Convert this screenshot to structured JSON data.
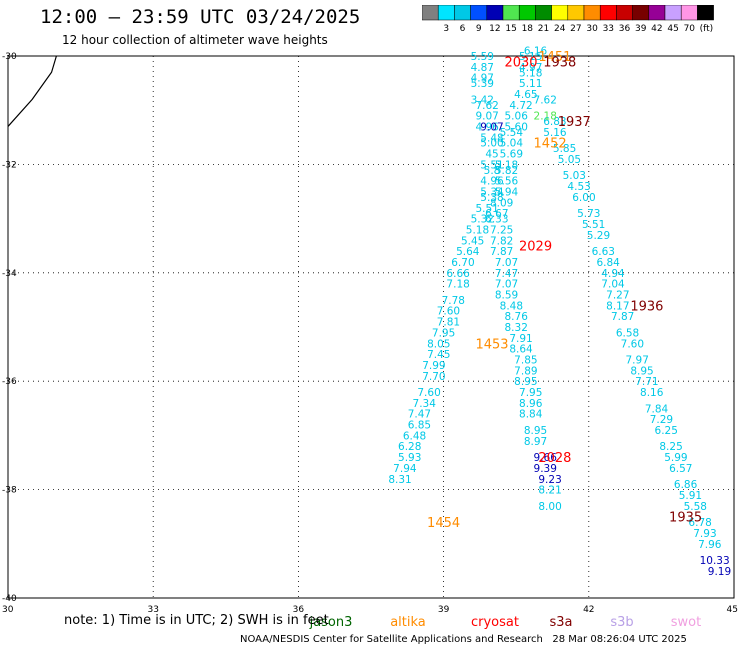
{
  "header": {
    "title": "12:00 — 23:59 UTC 03/24/2025",
    "subtitle": "12 hour collection of altimeter wave heights"
  },
  "colorbar": {
    "unit": "(ft)",
    "entries": [
      {
        "label": "",
        "color": "#808080"
      },
      {
        "label": "3",
        "color": "#00e5ff"
      },
      {
        "label": "6",
        "color": "#00c8e6"
      },
      {
        "label": "9",
        "color": "#0050ff"
      },
      {
        "label": "12",
        "color": "#0000b4"
      },
      {
        "label": "15",
        "color": "#50e650"
      },
      {
        "label": "18",
        "color": "#00c800"
      },
      {
        "label": "21",
        "color": "#008c00"
      },
      {
        "label": "24",
        "color": "#ffff00"
      },
      {
        "label": "27",
        "color": "#ffc800"
      },
      {
        "label": "30",
        "color": "#ff8c00"
      },
      {
        "label": "33",
        "color": "#ff0000"
      },
      {
        "label": "36",
        "color": "#c80000"
      },
      {
        "label": "39",
        "color": "#780000"
      },
      {
        "label": "42",
        "color": "#960096"
      },
      {
        "label": "45",
        "color": "#c8a0ff"
      },
      {
        "label": "70",
        "color": "#ff96e6"
      },
      {
        "label": "",
        "color": "#000000"
      }
    ]
  },
  "note": "note: 1) Time is in UTC; 2) SWH is in feet",
  "satellites": [
    {
      "name": "jason3",
      "color": "#006400"
    },
    {
      "name": "altika",
      "color": "#ff8c00"
    },
    {
      "name": "cryosat",
      "color": "#ff0000"
    },
    {
      "name": "s3a",
      "color": "#800000"
    },
    {
      "name": "s3b",
      "color": "#b8a0e6"
    },
    {
      "name": "swot",
      "color": "#f0a0e0"
    }
  ],
  "credit": "NOAA/NESDIS Center for Satellite Applications and Research   28 Mar 08:26:04 UTC 2025",
  "chart_data": {
    "type": "scatter",
    "xlim": [
      30,
      45
    ],
    "ylim": [
      -40,
      -30
    ],
    "x_ticks": [
      "30",
      "33",
      "36",
      "39",
      "42",
      "45"
    ],
    "y_ticks": [
      "-30",
      "-32",
      "-34",
      "-36",
      "-38",
      "-40"
    ],
    "grid": true,
    "coastline": [
      [
        30.0,
        -31.3
      ],
      [
        30.5,
        -30.8
      ],
      [
        30.9,
        -30.3
      ],
      [
        31.0,
        -30.0
      ]
    ],
    "tracks": [
      {
        "color": "#00c8e6",
        "points": [
          [
            39.8,
            -30.0,
            "5.59"
          ],
          [
            39.8,
            -30.2,
            "4.87"
          ],
          [
            39.8,
            -30.4,
            "4.97"
          ],
          [
            39.8,
            -30.5,
            "5.39"
          ],
          [
            39.8,
            -30.8,
            "3.42"
          ],
          [
            39.9,
            -30.9,
            "7.62"
          ],
          [
            39.9,
            -31.1,
            "9.07"
          ],
          [
            39.9,
            -31.3,
            "4.96"
          ],
          [
            40.0,
            -31.5,
            "5.48"
          ],
          [
            40.0,
            -31.6,
            "5.00"
          ],
          [
            40.0,
            -31.8,
            "45"
          ],
          [
            40.0,
            -32.0,
            "5.51"
          ],
          [
            40.0,
            -32.1,
            "5.8"
          ],
          [
            40.0,
            -32.3,
            "4.96"
          ],
          [
            40.0,
            -32.5,
            "5.34"
          ],
          [
            40.0,
            -32.6,
            "5.38"
          ],
          [
            39.9,
            -32.8,
            "5.51"
          ],
          [
            39.8,
            -33.0,
            "5.32"
          ],
          [
            39.7,
            -33.2,
            "5.18"
          ],
          [
            39.6,
            -33.4,
            "5.45"
          ],
          [
            39.5,
            -33.6,
            "5.64"
          ],
          [
            39.4,
            -33.8,
            "6.70"
          ],
          [
            39.3,
            -34.0,
            "6.66"
          ],
          [
            39.3,
            -34.2,
            "7.18"
          ],
          [
            39.2,
            -34.5,
            "7.78"
          ],
          [
            39.1,
            -34.7,
            "7.60"
          ],
          [
            39.1,
            -34.9,
            "7.81"
          ],
          [
            39.0,
            -35.1,
            "7.95"
          ],
          [
            38.9,
            -35.3,
            "8.05"
          ],
          [
            38.9,
            -35.5,
            "7.45"
          ],
          [
            38.8,
            -35.7,
            "7.99"
          ],
          [
            38.8,
            -35.9,
            "7.70"
          ],
          [
            38.7,
            -36.2,
            "7.60"
          ],
          [
            38.6,
            -36.4,
            "7.34"
          ],
          [
            38.5,
            -36.6,
            "7.47"
          ],
          [
            38.5,
            -36.8,
            "6.85"
          ],
          [
            38.4,
            -37.0,
            "6.48"
          ],
          [
            38.3,
            -37.2,
            "6.28"
          ],
          [
            38.3,
            -37.4,
            "5.93"
          ],
          [
            38.2,
            -37.6,
            "7.94"
          ],
          [
            38.1,
            -37.8,
            "8.31"
          ]
        ]
      },
      {
        "color": "#00c8e6",
        "points": [
          [
            40.9,
            -29.9,
            "6.16"
          ],
          [
            40.8,
            -30.0,
            "5.15"
          ],
          [
            40.8,
            -30.2,
            "4.97"
          ],
          [
            40.8,
            -30.3,
            "5.18"
          ],
          [
            40.8,
            -30.5,
            "5.11"
          ],
          [
            40.7,
            -30.7,
            "4.65"
          ],
          [
            40.6,
            -30.9,
            "4.72"
          ],
          [
            40.5,
            -31.1,
            "5.06"
          ],
          [
            40.5,
            -31.3,
            "5.60"
          ],
          [
            40.4,
            -31.4,
            "5.54"
          ],
          [
            40.4,
            -31.6,
            "5.04"
          ],
          [
            40.4,
            -31.8,
            "5.69"
          ],
          [
            40.3,
            -32.0,
            "5.18"
          ],
          [
            40.3,
            -32.1,
            "5.82"
          ],
          [
            40.3,
            -32.3,
            "5.56"
          ],
          [
            40.3,
            -32.5,
            "5.94"
          ],
          [
            40.2,
            -32.7,
            "8.09"
          ],
          [
            40.1,
            -32.9,
            "6.67"
          ],
          [
            40.1,
            -33.0,
            "6.33"
          ],
          [
            40.2,
            -33.2,
            "7.25"
          ],
          [
            40.2,
            -33.4,
            "7.82"
          ],
          [
            40.2,
            -33.6,
            "7.87"
          ],
          [
            40.3,
            -33.8,
            "7.07"
          ],
          [
            40.3,
            -34.0,
            "7.47"
          ],
          [
            40.3,
            -34.2,
            "7.07"
          ],
          [
            40.3,
            -34.4,
            "8.59"
          ],
          [
            40.4,
            -34.6,
            "8.48"
          ],
          [
            40.5,
            -34.8,
            "8.76"
          ],
          [
            40.5,
            -35.0,
            "8.32"
          ],
          [
            40.6,
            -35.2,
            "7.91"
          ],
          [
            40.6,
            -35.4,
            "8.64"
          ],
          [
            40.7,
            -35.6,
            "7.85"
          ],
          [
            40.7,
            -35.8,
            "7.89"
          ],
          [
            40.7,
            -36.0,
            "8.95"
          ],
          [
            40.8,
            -36.2,
            "7.95"
          ],
          [
            40.8,
            -36.4,
            "8.96"
          ],
          [
            40.8,
            -36.6,
            "8.84"
          ],
          [
            40.9,
            -36.9,
            "8.95"
          ],
          [
            40.9,
            -37.1,
            "8.97"
          ]
        ]
      },
      {
        "color": "#0000b4",
        "points": [
          [
            40.0,
            -31.3,
            "9.07"
          ],
          [
            41.1,
            -37.4,
            "9.66"
          ],
          [
            41.1,
            -37.6,
            "9.39"
          ],
          [
            41.2,
            -37.8,
            "9.23"
          ]
        ]
      },
      {
        "color": "#00c8e6",
        "points": [
          [
            41.1,
            -30.8,
            "7.62"
          ],
          [
            41.3,
            -31.2,
            "6.83"
          ],
          [
            41.3,
            -31.4,
            "5.16"
          ],
          [
            41.5,
            -31.7,
            "5.85"
          ],
          [
            41.6,
            -31.9,
            "5.05"
          ],
          [
            41.7,
            -32.2,
            "5.03"
          ],
          [
            41.8,
            -32.4,
            "4.53"
          ],
          [
            41.9,
            -32.6,
            "6.00"
          ],
          [
            42.0,
            -32.9,
            "5.73"
          ],
          [
            42.1,
            -33.1,
            "5.51"
          ],
          [
            42.2,
            -33.3,
            "5.29"
          ],
          [
            42.3,
            -33.6,
            "6.63"
          ],
          [
            42.4,
            -33.8,
            "6.84"
          ],
          [
            42.5,
            -34.0,
            "4.94"
          ],
          [
            42.5,
            -34.2,
            "7.04"
          ],
          [
            42.6,
            -34.4,
            "7.27"
          ],
          [
            42.6,
            -34.6,
            "8.17"
          ],
          [
            42.7,
            -34.8,
            "7.87"
          ],
          [
            42.8,
            -35.1,
            "6.58"
          ],
          [
            42.9,
            -35.3,
            "7.60"
          ],
          [
            43.0,
            -35.6,
            "7.97"
          ],
          [
            43.1,
            -35.8,
            "8.95"
          ],
          [
            43.2,
            -36.0,
            "7.71"
          ],
          [
            43.3,
            -36.2,
            "8.16"
          ],
          [
            43.4,
            -36.5,
            "7.84"
          ],
          [
            43.5,
            -36.7,
            "7.29"
          ],
          [
            43.6,
            -36.9,
            "6.25"
          ],
          [
            43.7,
            -37.2,
            "8.25"
          ],
          [
            43.8,
            -37.4,
            "5.99"
          ],
          [
            43.9,
            -37.6,
            "6.57"
          ],
          [
            44.0,
            -37.9,
            "6.86"
          ],
          [
            44.1,
            -38.1,
            "5.91"
          ],
          [
            44.2,
            -38.3,
            "5.58"
          ],
          [
            44.3,
            -38.6,
            "6.78"
          ],
          [
            44.4,
            -38.8,
            "7.93"
          ],
          [
            44.5,
            -39.0,
            "7.96"
          ]
        ]
      },
      {
        "color": "#0000b4",
        "points": [
          [
            44.6,
            -39.3,
            "10.33"
          ],
          [
            44.7,
            -39.5,
            "9.19"
          ]
        ]
      },
      {
        "color": "#00c8e6",
        "points": [
          [
            41.2,
            -38.0,
            "8.21"
          ],
          [
            41.2,
            -38.3,
            "8.00"
          ]
        ]
      },
      {
        "color": "#50e650",
        "points": [
          [
            41.1,
            -31.1,
            "2.18"
          ]
        ]
      }
    ],
    "annotations": [
      {
        "x": 41.3,
        "y": -30.0,
        "text": "1451",
        "color": "#ff8c00"
      },
      {
        "x": 40.6,
        "y": -30.1,
        "text": "2030",
        "color": "#ff0000"
      },
      {
        "x": 41.4,
        "y": -30.1,
        "text": "1938",
        "color": "#800000"
      },
      {
        "x": 41.7,
        "y": -31.2,
        "text": "1937",
        "color": "#800000"
      },
      {
        "x": 41.2,
        "y": -31.6,
        "text": "1452",
        "color": "#ff8c00"
      },
      {
        "x": 40.9,
        "y": -33.5,
        "text": "2029",
        "color": "#ff0000"
      },
      {
        "x": 43.2,
        "y": -34.6,
        "text": "1936",
        "color": "#800000"
      },
      {
        "x": 40.0,
        "y": -35.3,
        "text": "1453",
        "color": "#ff8c00"
      },
      {
        "x": 41.3,
        "y": -37.4,
        "text": "2028",
        "color": "#ff0000"
      },
      {
        "x": 44.0,
        "y": -38.5,
        "text": "1935",
        "color": "#800000"
      },
      {
        "x": 39.0,
        "y": -38.6,
        "text": "1454",
        "color": "#ff8c00"
      }
    ]
  }
}
